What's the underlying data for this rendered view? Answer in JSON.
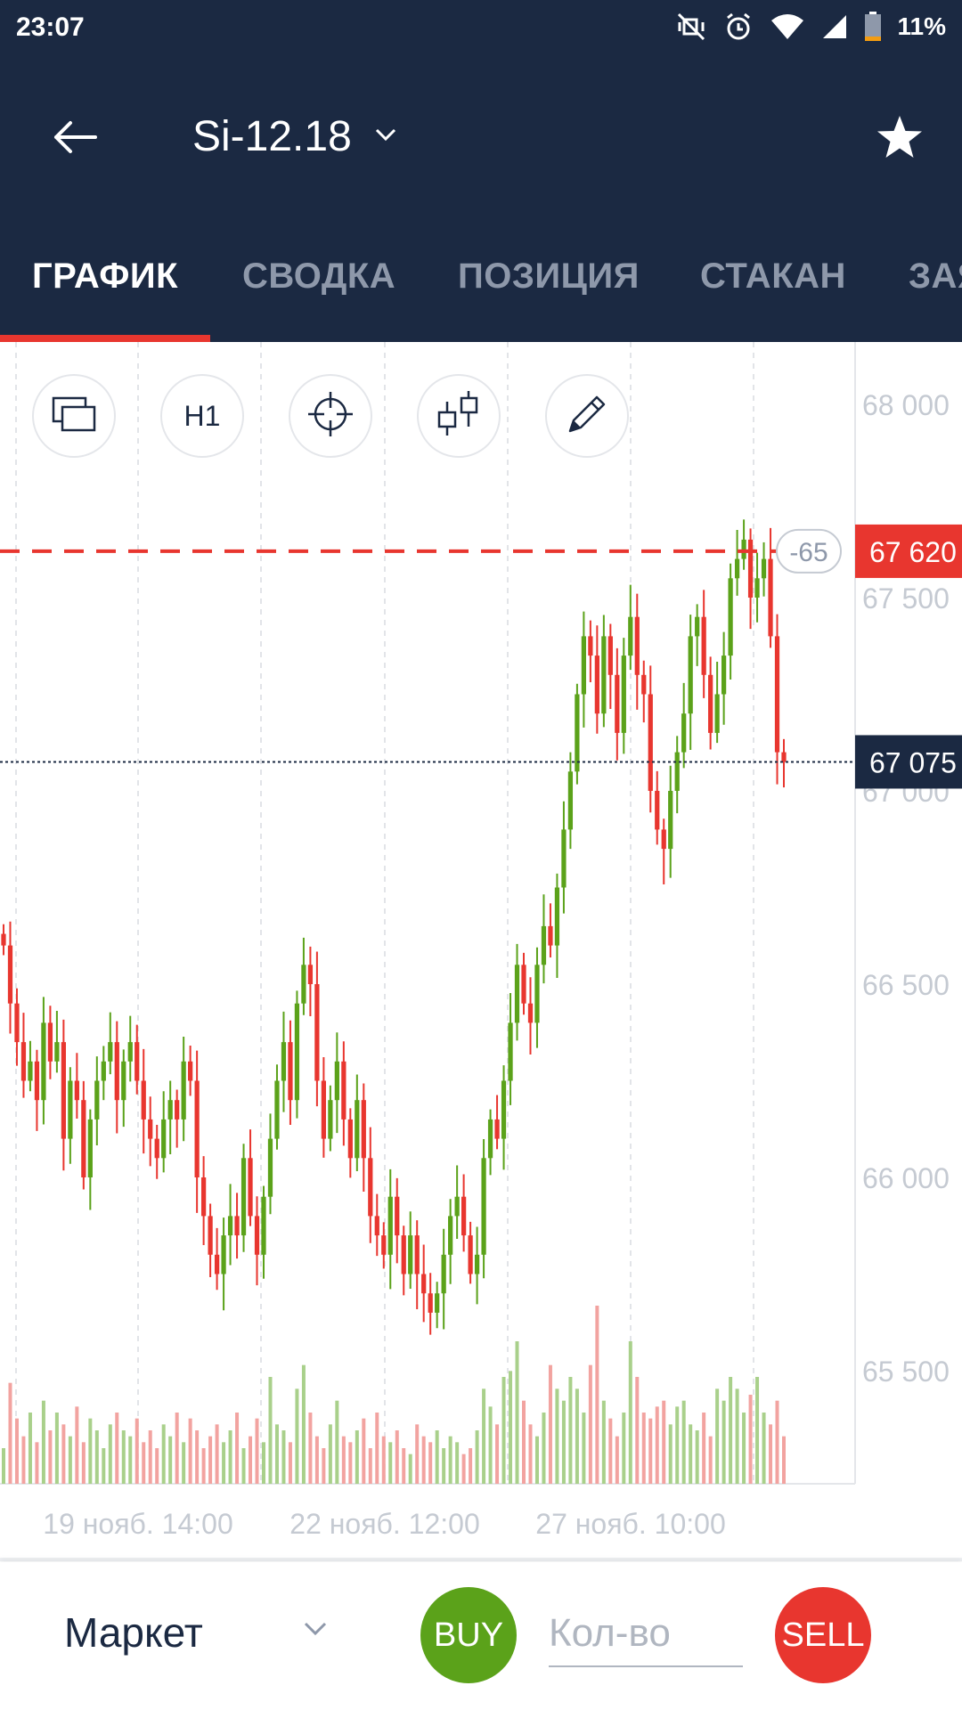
{
  "status_bar": {
    "time": "23:07",
    "battery": "11%",
    "icons": [
      "vibrate-off-icon",
      "alarm-icon",
      "wifi-icon",
      "signal-icon",
      "battery-icon"
    ]
  },
  "header": {
    "title": "Si-12.18",
    "icons": {
      "back": "arrow-left-icon",
      "dropdown": "chevron-down-icon",
      "favorite": "star-icon"
    }
  },
  "tabs": [
    {
      "label": "ГРАФИК",
      "active": true
    },
    {
      "label": "СВОДКА",
      "active": false
    },
    {
      "label": "ПОЗИЦИЯ",
      "active": false
    },
    {
      "label": "СТАКАН",
      "active": false
    },
    {
      "label": "ЗАЯВКИ",
      "active": false
    }
  ],
  "tools": [
    {
      "icon": "layers-icon",
      "label": ""
    },
    {
      "icon": "timeframe-icon",
      "label": "H1"
    },
    {
      "icon": "crosshair-icon",
      "label": ""
    },
    {
      "icon": "chart-type-icon",
      "label": ""
    },
    {
      "icon": "pencil-icon",
      "label": ""
    }
  ],
  "chart_data": {
    "type": "candlestick",
    "title": "",
    "y_ticks": [
      68000,
      67500,
      67000,
      66500,
      66000,
      65500
    ],
    "y_tick_labels": [
      "68 000",
      "67 500",
      "67 000",
      "66 500",
      "66 000",
      "65 500"
    ],
    "ylim": [
      65200,
      68150
    ],
    "x_tick_labels": [
      "19 нояб. 14:00",
      "22 нояб. 12:00",
      "27 нояб. 10:00"
    ],
    "order_line": {
      "price": 67620,
      "label": "67 620",
      "badge": "-65",
      "color": "#e8362f"
    },
    "last_price": {
      "price": 67075,
      "label": "67 075",
      "color": "#1b2942"
    },
    "up_color": "#5ba21a",
    "down_color": "#e8362f",
    "close_prices": [
      66600,
      66450,
      66350,
      66250,
      66300,
      66200,
      66400,
      66300,
      66350,
      66100,
      66250,
      66200,
      66000,
      66150,
      66250,
      66300,
      66350,
      66200,
      66300,
      66350,
      66250,
      66150,
      66100,
      66050,
      66150,
      66200,
      66150,
      66300,
      66250,
      66000,
      65900,
      65800,
      65750,
      65850,
      65900,
      65850,
      66050,
      65900,
      65800,
      65950,
      66100,
      66250,
      66350,
      66200,
      66450,
      66550,
      66500,
      66250,
      66100,
      66200,
      66300,
      66150,
      66050,
      66200,
      66050,
      65900,
      65850,
      65800,
      65950,
      65850,
      65750,
      65850,
      65750,
      65700,
      65650,
      65700,
      65800,
      65900,
      65950,
      65850,
      65750,
      65800,
      66050,
      66150,
      66100,
      66250,
      66400,
      66550,
      66450,
      66400,
      66550,
      66650,
      66600,
      66750,
      66900,
      67050,
      67250,
      67400,
      67350,
      67200,
      67400,
      67300,
      67150,
      67350,
      67450,
      67300,
      67250,
      67000,
      66900,
      66850,
      67000,
      67100,
      67200,
      67400,
      67450,
      67300,
      67150,
      67250,
      67350,
      67550,
      67600,
      67650,
      67500,
      67550,
      67600,
      67400,
      67100,
      67075
    ],
    "volumes": [
      30,
      85,
      55,
      40,
      60,
      35,
      70,
      45,
      60,
      50,
      40,
      65,
      35,
      55,
      45,
      30,
      50,
      60,
      45,
      40,
      55,
      35,
      45,
      30,
      50,
      40,
      60,
      35,
      55,
      45,
      30,
      40,
      50,
      35,
      45,
      60,
      30,
      40,
      55,
      35,
      90,
      50,
      45,
      35,
      80,
      100,
      60,
      40,
      30,
      50,
      70,
      40,
      35,
      45,
      55,
      30,
      60,
      40,
      35,
      45,
      30,
      25,
      50,
      40,
      35,
      45,
      30,
      40,
      35,
      25,
      30,
      45,
      80,
      65,
      50,
      90,
      95,
      120,
      70,
      50,
      40,
      60,
      100,
      80,
      70,
      90,
      80,
      60,
      100,
      150,
      70,
      55,
      40,
      60,
      120,
      90,
      60,
      55,
      65,
      70,
      50,
      65,
      70,
      50,
      45,
      60,
      40,
      80,
      70,
      90,
      80,
      60,
      75,
      90,
      60,
      50,
      70,
      40
    ]
  },
  "bottom_bar": {
    "order_type": "Маркет",
    "buy_label": "BUY",
    "sell_label": "SELL",
    "qty_placeholder": "Кол-во",
    "buy_color": "#5ba21a",
    "sell_color": "#e8362f"
  }
}
